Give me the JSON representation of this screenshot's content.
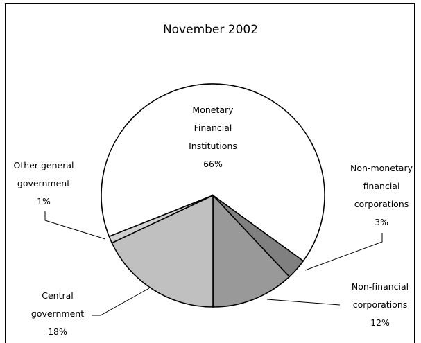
{
  "chart_data": {
    "type": "pie",
    "title": "November 2002",
    "categories": [
      "Monetary Financial Institutions",
      "Non-monetary financial corporations",
      "Non-financial corporations",
      "Central government",
      "Other general government"
    ],
    "values": [
      66,
      3,
      12,
      18,
      1
    ],
    "value_labels": [
      "66%",
      "3%",
      "12%",
      "18%",
      "1%"
    ],
    "colors": [
      "#ffffff",
      "#808080",
      "#999999",
      "#c0c0c0",
      "#d0d0d0"
    ]
  }
}
